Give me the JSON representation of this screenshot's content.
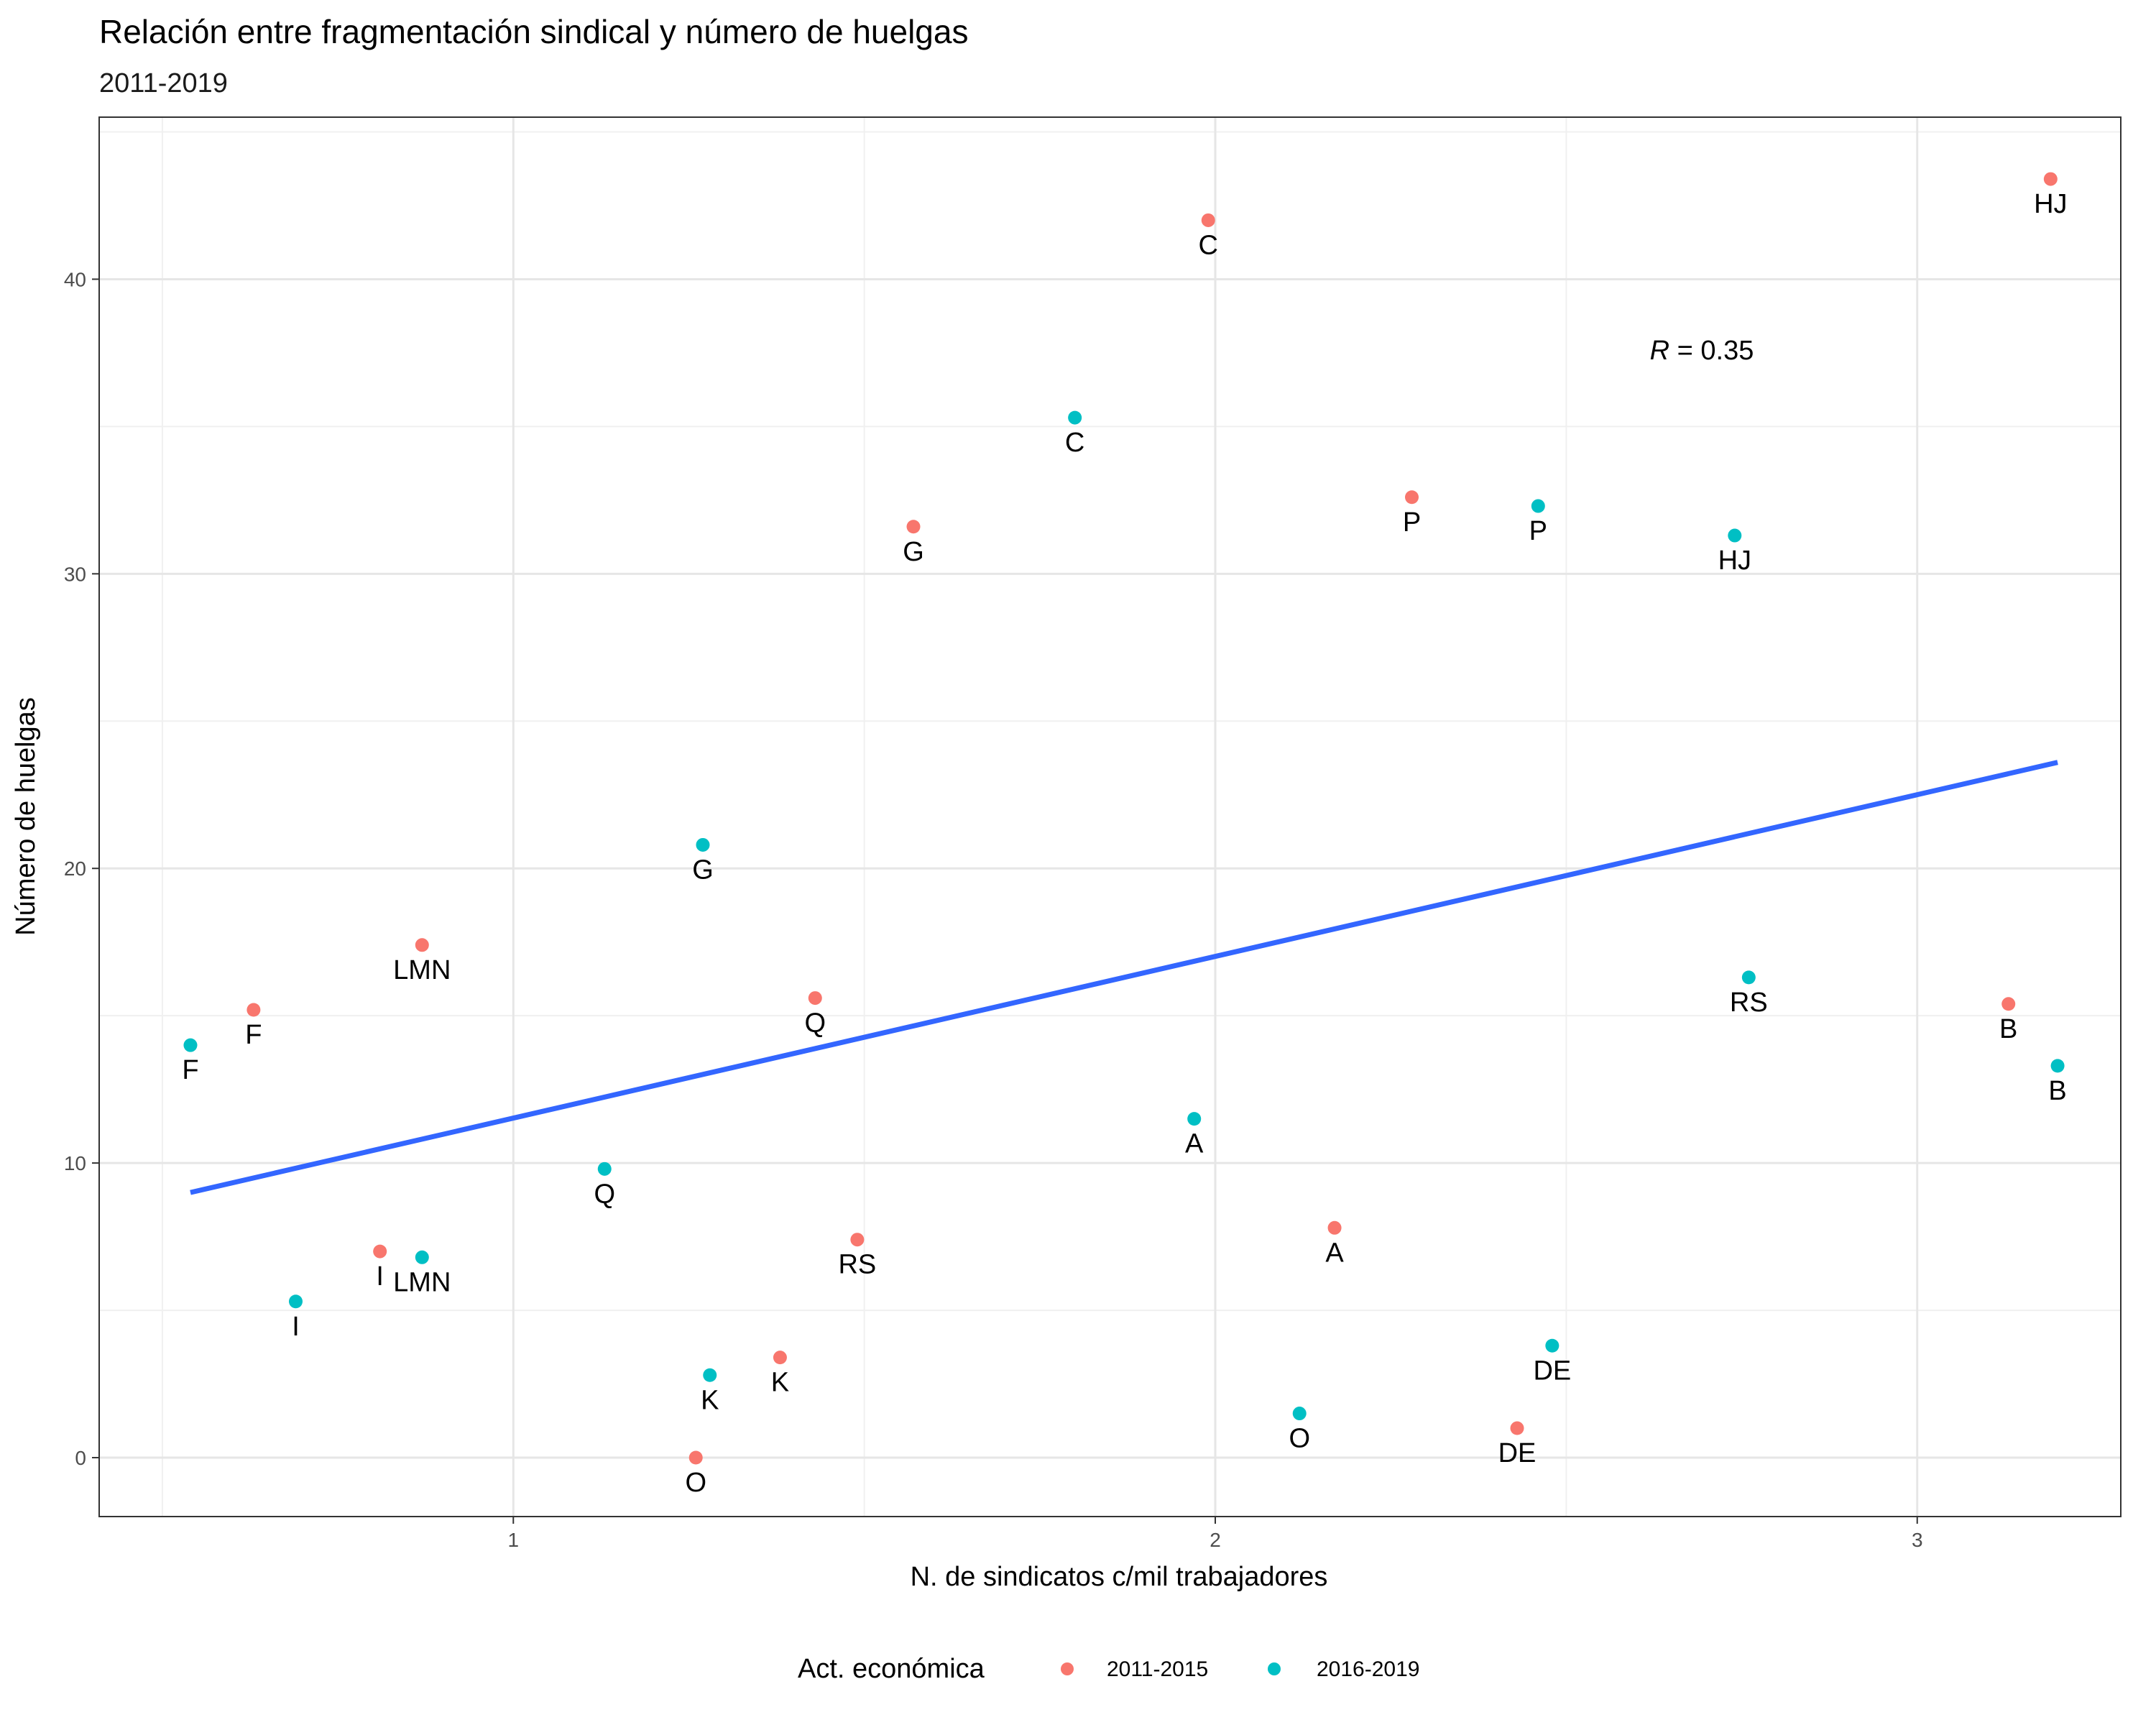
{
  "chart_data": {
    "type": "scatter",
    "title": "Relación entre fragmentación sindical y número de huelgas",
    "subtitle": "2011-2019",
    "xlabel": "N. de sindicatos c/mil trabajadores",
    "ylabel": "Número de huelgas",
    "xlim": [
      0.41,
      3.29
    ],
    "ylim": [
      -2,
      45.5
    ],
    "x_ticks": [
      1,
      2,
      3
    ],
    "y_ticks": [
      0,
      10,
      20,
      30,
      40
    ],
    "x_tick_labels": [
      "1",
      "2",
      "3"
    ],
    "y_tick_labels": [
      "0",
      "10",
      "20",
      "30",
      "40"
    ],
    "grid": true,
    "legend": {
      "title": "Act. económica",
      "position": "bottom",
      "entries": [
        {
          "label": "2011-2015",
          "color": "#F8766D"
        },
        {
          "label": "2016-2019",
          "color": "#00BFC4"
        }
      ]
    },
    "annotation": {
      "r_symbol": "R",
      "text": " = 0.35",
      "x": 2.7,
      "y": 37.4
    },
    "trend_line": {
      "color": "#3366FF",
      "x": [
        0.54,
        3.2
      ],
      "y": [
        9.0,
        23.6
      ]
    },
    "series": [
      {
        "name": "2011-2015",
        "color": "#F8766D",
        "points": [
          {
            "label": "HJ",
            "x": 3.19,
            "y": 43.4
          },
          {
            "label": "C",
            "x": 1.99,
            "y": 42.0
          },
          {
            "label": "P",
            "x": 2.28,
            "y": 32.6
          },
          {
            "label": "G",
            "x": 1.57,
            "y": 31.6
          },
          {
            "label": "LMN",
            "x": 0.87,
            "y": 17.4
          },
          {
            "label": "Q",
            "x": 1.43,
            "y": 15.6
          },
          {
            "label": "B",
            "x": 3.13,
            "y": 15.4
          },
          {
            "label": "F",
            "x": 0.63,
            "y": 15.2
          },
          {
            "label": "A",
            "x": 2.17,
            "y": 7.8
          },
          {
            "label": "RS",
            "x": 1.49,
            "y": 7.4
          },
          {
            "label": "I",
            "x": 0.81,
            "y": 7.0
          },
          {
            "label": "K",
            "x": 1.38,
            "y": 3.4
          },
          {
            "label": "DE",
            "x": 2.43,
            "y": 1.0
          },
          {
            "label": "O",
            "x": 1.26,
            "y": 0.0
          }
        ]
      },
      {
        "name": "2016-2019",
        "color": "#00BFC4",
        "points": [
          {
            "label": "C",
            "x": 1.8,
            "y": 35.3
          },
          {
            "label": "P",
            "x": 2.46,
            "y": 32.3
          },
          {
            "label": "HJ",
            "x": 2.74,
            "y": 31.3
          },
          {
            "label": "G",
            "x": 1.27,
            "y": 20.8
          },
          {
            "label": "RS",
            "x": 2.76,
            "y": 16.3
          },
          {
            "label": "F",
            "x": 0.54,
            "y": 14.0
          },
          {
            "label": "B",
            "x": 3.2,
            "y": 13.3
          },
          {
            "label": "A",
            "x": 1.97,
            "y": 11.5
          },
          {
            "label": "Q",
            "x": 1.13,
            "y": 9.8
          },
          {
            "label": "LMN",
            "x": 0.87,
            "y": 6.8
          },
          {
            "label": "I",
            "x": 0.69,
            "y": 5.3
          },
          {
            "label": "DE",
            "x": 2.48,
            "y": 3.8
          },
          {
            "label": "K",
            "x": 1.28,
            "y": 2.8
          },
          {
            "label": "O",
            "x": 2.12,
            "y": 1.5
          }
        ]
      }
    ]
  }
}
